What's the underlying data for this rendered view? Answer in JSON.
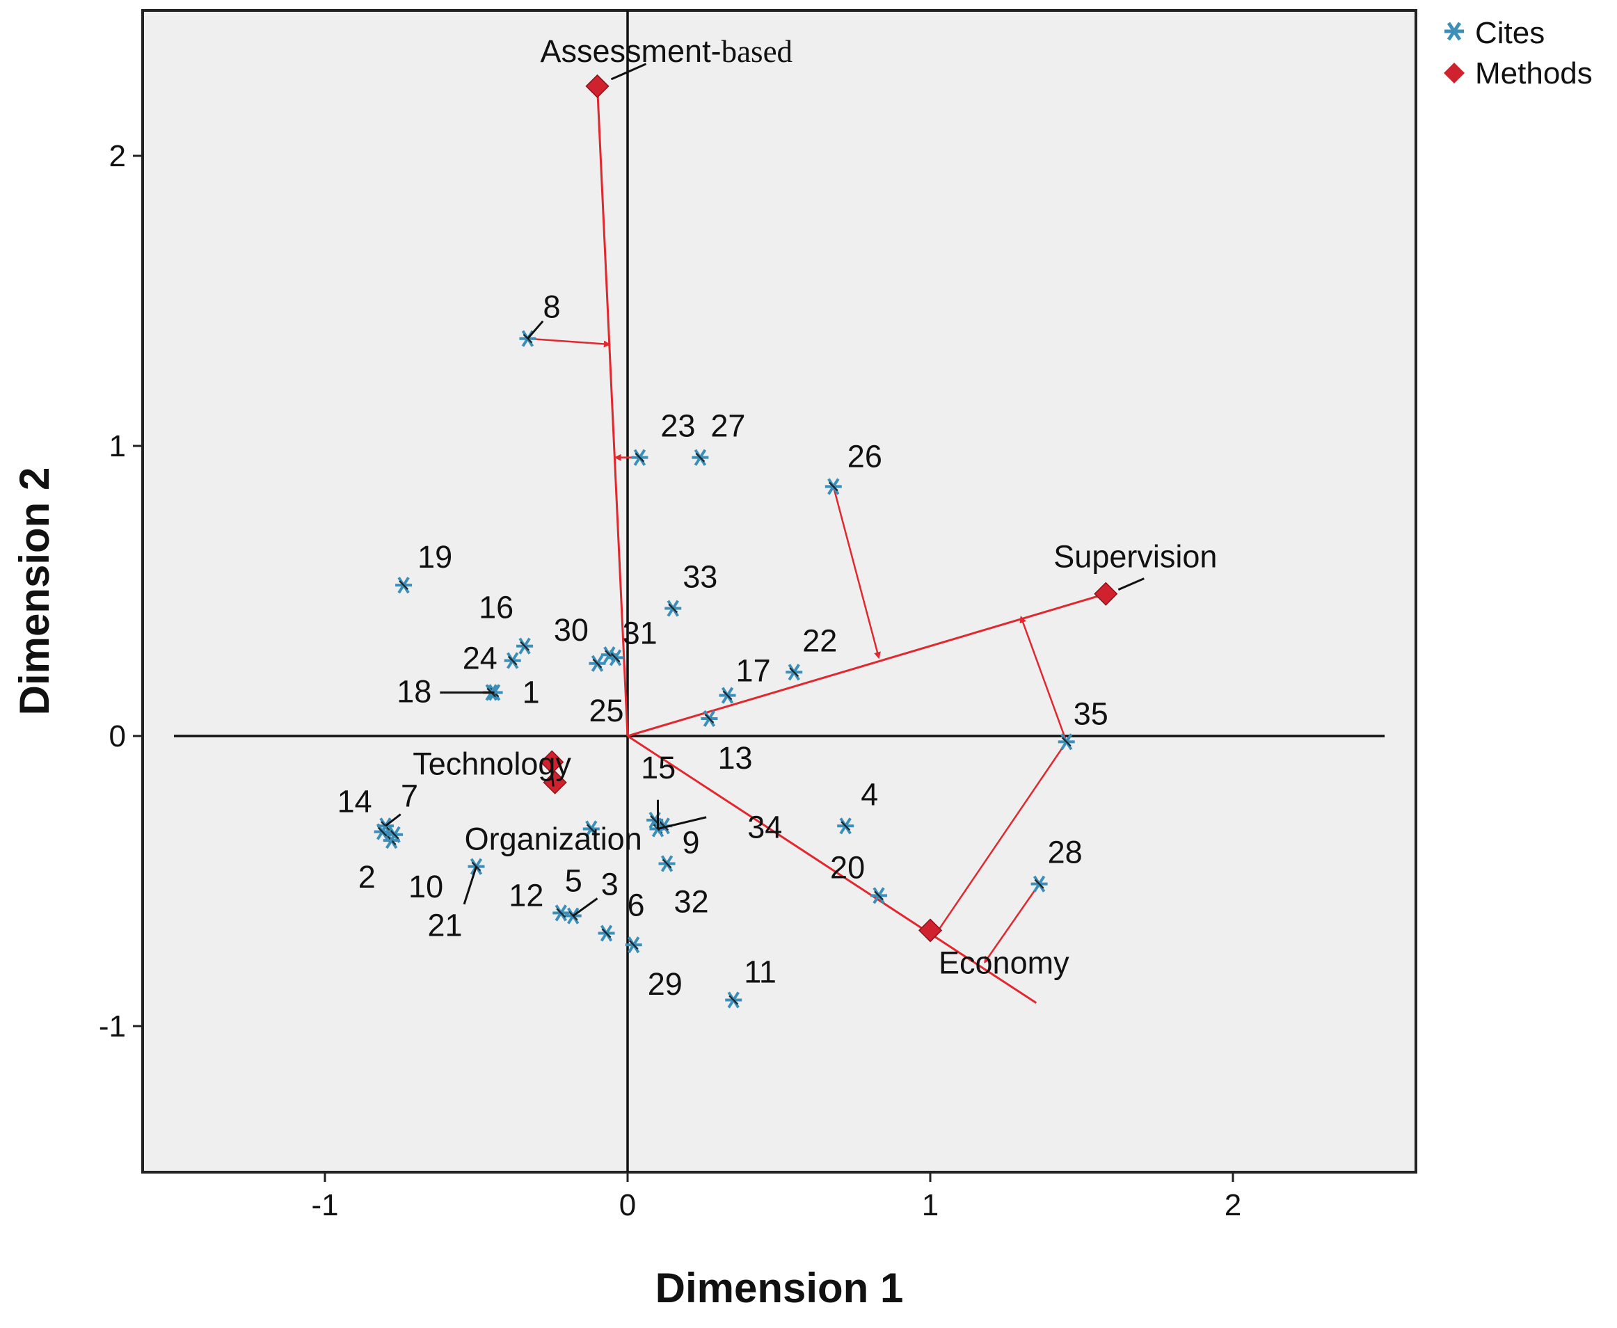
{
  "chart_data": {
    "type": "scatter",
    "title": "",
    "xlabel": "Dimension 1",
    "ylabel": "Dimension 2",
    "xlim": [
      -1.5,
      2.6
    ],
    "ylim": [
      -1.5,
      2.5
    ],
    "xticks": [
      "-1",
      "0",
      "1",
      "2"
    ],
    "yticks": [
      "-1",
      "0",
      "1",
      "2"
    ],
    "xtick_values": [
      -1,
      0,
      1,
      2
    ],
    "ytick_values": [
      -1,
      0,
      1,
      2
    ],
    "grid": false,
    "legend_position": "top-right",
    "colors": {
      "cites": "#3b8fb8",
      "methods": "#d0222e",
      "background": "#efefef",
      "arrows": "#e0282e"
    },
    "series": [
      {
        "name": "Cites",
        "marker": "star",
        "points": [
          {
            "label": "1",
            "x": -0.44,
            "y": 0.15
          },
          {
            "label": "2",
            "x": -0.78,
            "y": -0.36
          },
          {
            "label": "3",
            "x": -0.18,
            "y": -0.62
          },
          {
            "label": "4",
            "x": 0.72,
            "y": -0.31
          },
          {
            "label": "5",
            "x": -0.12,
            "y": -0.32
          },
          {
            "label": "6",
            "x": -0.07,
            "y": -0.68
          },
          {
            "label": "7",
            "x": -0.8,
            "y": -0.31
          },
          {
            "label": "8",
            "x": -0.33,
            "y": 1.37
          },
          {
            "label": "9",
            "x": 0.1,
            "y": -0.32
          },
          {
            "label": "10",
            "x": -0.77,
            "y": -0.34
          },
          {
            "label": "11",
            "x": 0.35,
            "y": -0.91
          },
          {
            "label": "12",
            "x": -0.22,
            "y": -0.61
          },
          {
            "label": "13",
            "x": 0.27,
            "y": 0.06
          },
          {
            "label": "14",
            "x": -0.81,
            "y": -0.33
          },
          {
            "label": "15",
            "x": 0.09,
            "y": -0.29
          },
          {
            "label": "16",
            "x": -0.34,
            "y": 0.31
          },
          {
            "label": "17",
            "x": 0.33,
            "y": 0.14
          },
          {
            "label": "18",
            "x": -0.45,
            "y": 0.15
          },
          {
            "label": "19",
            "x": -0.74,
            "y": 0.52
          },
          {
            "label": "20",
            "x": 0.83,
            "y": -0.55
          },
          {
            "label": "21",
            "x": -0.5,
            "y": -0.45
          },
          {
            "label": "22",
            "x": 0.55,
            "y": 0.22
          },
          {
            "label": "23",
            "x": 0.04,
            "y": 0.96
          },
          {
            "label": "24",
            "x": -0.38,
            "y": 0.26
          },
          {
            "label": "25",
            "x": -0.1,
            "y": 0.25
          },
          {
            "label": "26",
            "x": 0.68,
            "y": 0.86
          },
          {
            "label": "27",
            "x": 0.24,
            "y": 0.96
          },
          {
            "label": "28",
            "x": 1.36,
            "y": -0.51
          },
          {
            "label": "29",
            "x": 0.02,
            "y": -0.72
          },
          {
            "label": "30",
            "x": -0.06,
            "y": 0.28
          },
          {
            "label": "31",
            "x": -0.04,
            "y": 0.27
          },
          {
            "label": "32",
            "x": 0.13,
            "y": -0.44
          },
          {
            "label": "33",
            "x": 0.15,
            "y": 0.44
          },
          {
            "label": "34",
            "x": 0.12,
            "y": -0.31
          },
          {
            "label": "35",
            "x": 1.45,
            "y": -0.02
          }
        ]
      },
      {
        "name": "Methods",
        "marker": "diamond",
        "points": [
          {
            "label": "Assessment-",
            "label_suffix": "based",
            "x": -0.1,
            "y": 2.24
          },
          {
            "label": "Supervision",
            "x": 1.58,
            "y": 0.49
          },
          {
            "label": "Technology",
            "x": -0.25,
            "y": -0.09
          },
          {
            "label": "Organization",
            "x": -0.24,
            "y": -0.16
          },
          {
            "label": "Economy",
            "x": 1.0,
            "y": -0.67
          }
        ]
      }
    ],
    "vectors": [
      {
        "name": "Assessment-based",
        "from": [
          0,
          0
        ],
        "to": [
          -0.1,
          2.24
        ]
      },
      {
        "name": "Supervision",
        "from": [
          0,
          0
        ],
        "to": [
          1.58,
          0.49
        ]
      },
      {
        "name": "Economy",
        "from": [
          0,
          0
        ],
        "to": [
          1.35,
          -0.92
        ]
      }
    ],
    "projections": [
      {
        "cite": "8",
        "from": [
          -0.33,
          1.37
        ],
        "to": [
          -0.06,
          1.35
        ]
      },
      {
        "cite": "23",
        "from": [
          0.04,
          0.96
        ],
        "to": [
          -0.04,
          0.96
        ]
      },
      {
        "cite": "26",
        "from": [
          0.68,
          0.86
        ],
        "to": [
          0.83,
          0.27
        ]
      },
      {
        "cite": "35",
        "from": [
          1.45,
          -0.02
        ],
        "to": [
          1.3,
          0.41
        ]
      },
      {
        "cite": "35",
        "from": [
          1.45,
          -0.02
        ],
        "to": [
          1.02,
          -0.68
        ]
      },
      {
        "cite": "28",
        "from": [
          1.36,
          -0.51
        ],
        "to": [
          1.18,
          -0.78
        ]
      }
    ],
    "legend": [
      {
        "label": "Cites",
        "marker": "star"
      },
      {
        "label": "Methods",
        "marker": "diamond"
      }
    ]
  }
}
